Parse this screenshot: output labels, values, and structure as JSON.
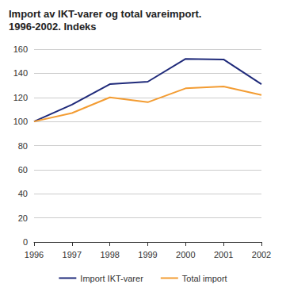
{
  "chart_data": {
    "type": "line",
    "title": "Import av IKT-varer og total vareimport. 1996-2002. Indeks",
    "categories": [
      "1996",
      "1997",
      "1998",
      "1999",
      "2000",
      "2001",
      "2002"
    ],
    "series": [
      {
        "name": "Import IKT-varer",
        "color": "#1f2a7a",
        "values": [
          100,
          114,
          131,
          133,
          152,
          151.5,
          131
        ]
      },
      {
        "name": "Total import",
        "color": "#f39c32",
        "values": [
          100,
          107,
          120,
          116,
          127.5,
          129,
          122
        ]
      }
    ],
    "ylim": [
      0,
      160
    ],
    "yticks": [
      0,
      20,
      40,
      60,
      80,
      100,
      120,
      140,
      160
    ],
    "grid": true,
    "legend": "bottom"
  }
}
